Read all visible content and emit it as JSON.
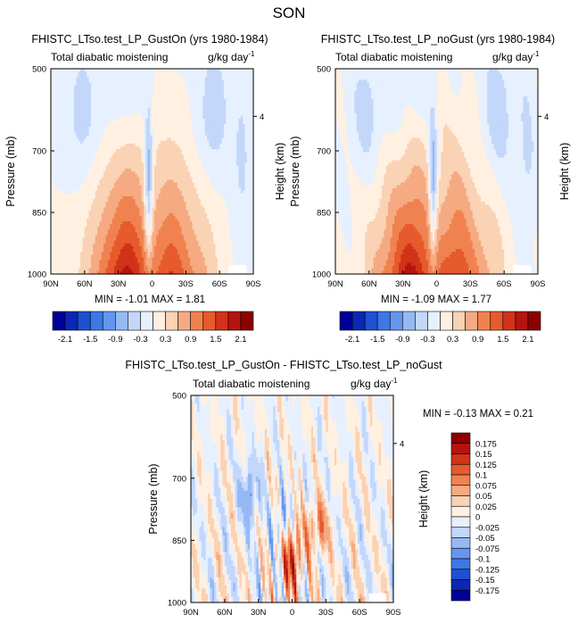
{
  "page_title": "SON",
  "chart_data": [
    {
      "type": "heatmap",
      "title": "FHISTC_LTso.test_LP_GustOn (yrs 1980-1984)",
      "subtitle_left": "Total diabatic moistening",
      "subtitle_right": "g/kg day",
      "units_exp": "-1",
      "ylabel": "Pressure (mb)",
      "ylabel_right": "Height (km)",
      "x_ticks": [
        "90N",
        "60N",
        "30N",
        "0",
        "30S",
        "60S",
        "90S"
      ],
      "y_ticks": [
        "500",
        "700",
        "850",
        "1000"
      ],
      "y_tick_values": [
        500,
        700,
        850,
        1000
      ],
      "right_tick": "4",
      "xlim": [
        90,
        -90
      ],
      "ylim": [
        500,
        1000
      ],
      "stats": "MIN =  -1.01   MAX =   1.81",
      "min": -1.01,
      "max": 1.81
    },
    {
      "type": "heatmap",
      "title": "FHISTC_LTso.test_LP_noGust (yrs 1980-1984)",
      "subtitle_left": "Total diabatic moistening",
      "subtitle_right": "g/kg day",
      "units_exp": "-1",
      "ylabel": "Pressure (mb)",
      "ylabel_right": "Height (km)",
      "x_ticks": [
        "90N",
        "60N",
        "30N",
        "0",
        "30S",
        "60S",
        "90S"
      ],
      "y_ticks": [
        "500",
        "700",
        "850",
        "1000"
      ],
      "y_tick_values": [
        500,
        700,
        850,
        1000
      ],
      "right_tick": "4",
      "xlim": [
        90,
        -90
      ],
      "ylim": [
        500,
        1000
      ],
      "stats": "MIN =  -1.09   MAX =   1.77",
      "min": -1.09,
      "max": 1.77
    },
    {
      "type": "heatmap",
      "title": "FHISTC_LTso.test_LP_GustOn - FHISTC_LTso.test_LP_noGust",
      "subtitle_left": "Total diabatic moistening",
      "subtitle_right": "g/kg day",
      "units_exp": "-1",
      "ylabel": "Pressure (mb)",
      "ylabel_right": "Height (km)",
      "x_ticks": [
        "90N",
        "60N",
        "30N",
        "0",
        "30S",
        "60S",
        "90S"
      ],
      "y_ticks": [
        "500",
        "700",
        "850",
        "1000"
      ],
      "y_tick_values": [
        500,
        700,
        850,
        1000
      ],
      "right_tick": "4",
      "xlim": [
        90,
        -90
      ],
      "ylim": [
        500,
        1000
      ],
      "stats": "MIN =  -0.13   MAX =   0.21",
      "min": -0.13,
      "max": 0.21
    }
  ],
  "colorbar_main": {
    "labels": [
      "-2.1",
      "-1.5",
      "-0.9",
      "-0.3",
      "0.3",
      "0.9",
      "1.5",
      "2.1"
    ],
    "colors": [
      "#000096",
      "#0a28b4",
      "#1e50d2",
      "#3c78e6",
      "#6496f0",
      "#96b9f5",
      "#c3d7fa",
      "#e6f0ff",
      "#fff0e1",
      "#fad2b4",
      "#f5aa82",
      "#f08250",
      "#e65a2d",
      "#d23219",
      "#b4140f",
      "#8c0000"
    ]
  },
  "colorbar_diff": {
    "labels": [
      "0.175",
      "0.15",
      "0.125",
      "0.1",
      "0.075",
      "0.05",
      "0.025",
      "0",
      "-0.025",
      "-0.05",
      "-0.075",
      "-0.1",
      "-0.125",
      "-0.15",
      "-0.175"
    ],
    "colors": [
      "#8c0000",
      "#b4140f",
      "#d23219",
      "#e65a2d",
      "#f08250",
      "#f5aa82",
      "#fad2b4",
      "#fff0e1",
      "#e6f0ff",
      "#c3d7fa",
      "#96b9f5",
      "#6496f0",
      "#3c78e6",
      "#1e50d2",
      "#0a28b4",
      "#000096"
    ]
  }
}
